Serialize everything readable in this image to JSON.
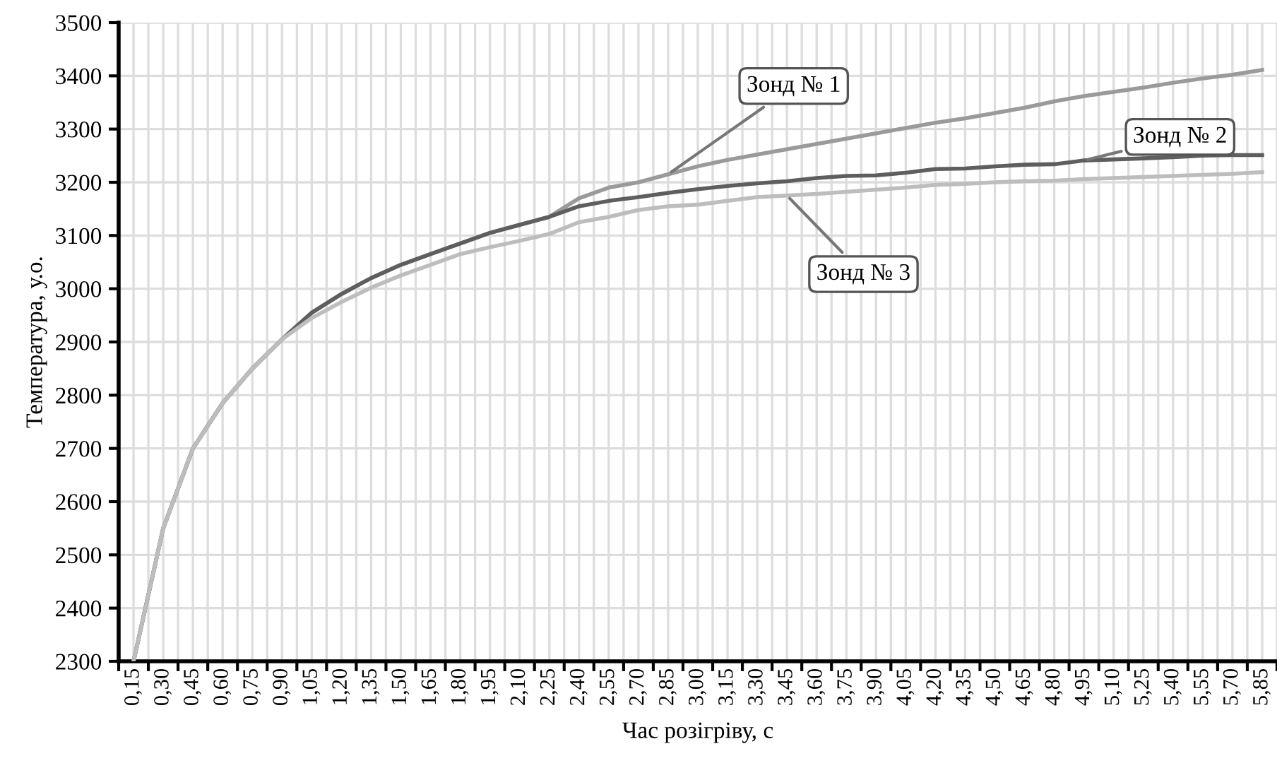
{
  "chart_data": {
    "type": "line",
    "xlabel": "Час розігріву, с",
    "ylabel": "Температура, у.о.",
    "categories": [
      "0,15",
      "0,30",
      "0,45",
      "0,60",
      "0,75",
      "0,90",
      "1,05",
      "1,20",
      "1,35",
      "1,50",
      "1,65",
      "1,80",
      "1,95",
      "2,10",
      "2,25",
      "2,40",
      "2,55",
      "2,70",
      "2,85",
      "3,00",
      "3,15",
      "3,30",
      "3,45",
      "3,60",
      "3,75",
      "3,90",
      "4,05",
      "4,20",
      "4,35",
      "4,50",
      "4,65",
      "4,80",
      "4,95",
      "5,10",
      "5,25",
      "5,40",
      "5,55",
      "5,70",
      "5,85"
    ],
    "series": [
      {
        "color": "#9a9a9a",
        "values": [
          2300,
          2550,
          2700,
          2785,
          2850,
          2905,
          2955,
          2990,
          3020,
          3045,
          3065,
          3085,
          3105,
          3120,
          3135,
          3170,
          3190,
          3200,
          3215,
          3230,
          3242,
          3252,
          3262,
          3272,
          3282,
          3292,
          3302,
          3312,
          3320,
          3330,
          3340,
          3352,
          3362,
          3370,
          3378,
          3387,
          3395,
          3402,
          3411
        ]
      },
      {
        "color": "#5e5e5e",
        "values": [
          2300,
          2550,
          2700,
          2785,
          2850,
          2905,
          2955,
          2990,
          3020,
          3045,
          3065,
          3085,
          3105,
          3120,
          3135,
          3155,
          3165,
          3172,
          3180,
          3187,
          3193,
          3198,
          3202,
          3208,
          3212,
          3213,
          3218,
          3225,
          3226,
          3230,
          3233,
          3234,
          3241,
          3243,
          3245,
          3247,
          3250,
          3251,
          3251
        ]
      },
      {
        "color": "#bdbdbd",
        "values": [
          2300,
          2550,
          2700,
          2785,
          2850,
          2905,
          2945,
          2975,
          3002,
          3025,
          3045,
          3065,
          3078,
          3090,
          3103,
          3125,
          3135,
          3148,
          3155,
          3158,
          3165,
          3172,
          3175,
          3178,
          3182,
          3186,
          3190,
          3195,
          3197,
          3200,
          3202,
          3203,
          3206,
          3208,
          3210,
          3212,
          3214,
          3216,
          3219
        ]
      }
    ],
    "annotations": [
      {
        "text": "Зонд № 1",
        "x": "2,85",
        "y": 3215
      },
      {
        "text": "Зонд № 2",
        "x": "4,95",
        "y": 3241
      },
      {
        "text": "Зонд № 3",
        "x": "3,45",
        "y": 3175
      }
    ],
    "ylim": [
      2300,
      3500
    ],
    "yticks": [
      2300,
      2400,
      2500,
      2600,
      2700,
      2800,
      2900,
      3000,
      3100,
      3200,
      3300,
      3400,
      3500
    ],
    "grid": true,
    "legend": false
  }
}
